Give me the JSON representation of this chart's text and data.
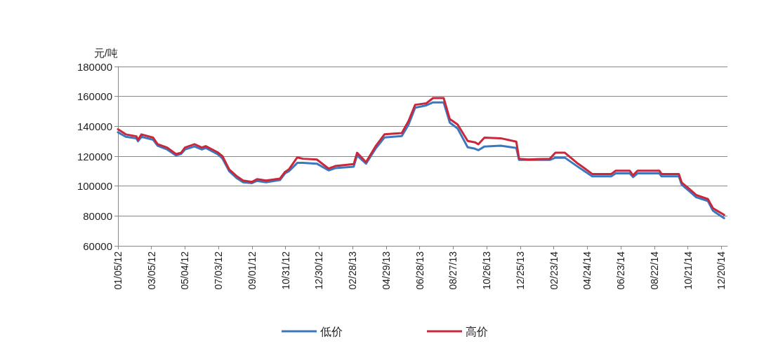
{
  "chart_data": {
    "type": "line",
    "ylabel": "元/吨",
    "x": [
      "2012-01-05",
      "2012-01-19",
      "2012-02-07",
      "2012-02-10",
      "2012-02-16",
      "2012-03-08",
      "2012-03-16",
      "2012-04-02",
      "2012-04-18",
      "2012-04-27",
      "2012-05-04",
      "2012-05-21",
      "2012-06-03",
      "2012-06-10",
      "2012-07-01",
      "2012-07-10",
      "2012-07-22",
      "2012-08-04",
      "2012-08-16",
      "2012-09-01",
      "2012-09-10",
      "2012-09-26",
      "2012-10-21",
      "2012-10-30",
      "2012-11-06",
      "2012-11-21",
      "2012-12-01",
      "2012-12-26",
      "2013-01-16",
      "2013-01-28",
      "2013-03-02",
      "2013-03-08",
      "2013-03-24",
      "2013-04-11",
      "2013-04-26",
      "2013-05-27",
      "2013-06-08",
      "2013-06-20",
      "2013-07-10",
      "2013-07-22",
      "2013-08-10",
      "2013-08-21",
      "2013-09-04",
      "2013-09-22",
      "2013-10-05",
      "2013-10-11",
      "2013-10-22",
      "2013-11-20",
      "2013-12-18",
      "2013-12-23",
      "2014-01-08",
      "2014-02-16",
      "2014-02-26",
      "2014-03-15",
      "2014-04-05",
      "2014-04-17",
      "2014-05-03",
      "2014-06-06",
      "2014-06-14",
      "2014-07-09",
      "2014-07-15",
      "2014-07-23",
      "2014-08-31",
      "2014-09-04",
      "2014-10-05",
      "2014-10-10",
      "2014-10-24",
      "2014-11-05",
      "2014-11-26",
      "2014-12-05",
      "2014-12-25"
    ],
    "series": [
      {
        "name": "低价",
        "color": "#3c78c0",
        "values": [
          136000,
          133000,
          132000,
          130000,
          133000,
          131000,
          127000,
          124500,
          120500,
          121500,
          124500,
          126500,
          124500,
          125500,
          121500,
          118500,
          110000,
          105500,
          102500,
          102000,
          103500,
          102500,
          104000,
          108500,
          110000,
          115500,
          115500,
          115000,
          110500,
          112000,
          113000,
          120500,
          115000,
          125500,
          132500,
          133500,
          141000,
          152500,
          154000,
          156000,
          156000,
          142500,
          138500,
          126000,
          125000,
          124000,
          126500,
          127000,
          125500,
          117500,
          117500,
          117500,
          119000,
          119000,
          113500,
          110500,
          106500,
          106500,
          108500,
          108500,
          106000,
          108500,
          108500,
          106500,
          106500,
          101000,
          96500,
          92500,
          90000,
          83500,
          78500
        ]
      },
      {
        "name": "高价",
        "color": "#c8283a",
        "values": [
          138000,
          134600,
          133300,
          131000,
          134600,
          132400,
          128000,
          125800,
          121400,
          122300,
          125800,
          128000,
          125800,
          126700,
          122700,
          120000,
          111200,
          106800,
          103700,
          102800,
          104600,
          103700,
          105000,
          109500,
          111200,
          119200,
          118300,
          117800,
          111700,
          113400,
          114700,
          122300,
          116000,
          127100,
          134600,
          135500,
          143400,
          154400,
          155400,
          158900,
          158900,
          144800,
          141200,
          130200,
          129300,
          128000,
          132400,
          132000,
          129700,
          118300,
          117800,
          118300,
          122300,
          122300,
          115700,
          112500,
          108100,
          108100,
          110300,
          110300,
          107200,
          110300,
          110300,
          108100,
          108100,
          102400,
          98000,
          94000,
          91300,
          85200,
          80700
        ]
      }
    ],
    "xlim": [
      "2012-01-05",
      "2014-12-31"
    ],
    "xticks": [
      {
        "value": "2012-01-05",
        "label": "01/05/12"
      },
      {
        "value": "2012-03-05",
        "label": "03/05/12"
      },
      {
        "value": "2012-05-04",
        "label": "05/04/12"
      },
      {
        "value": "2012-07-03",
        "label": "07/03/12"
      },
      {
        "value": "2012-09-01",
        "label": "09/01/12"
      },
      {
        "value": "2012-10-31",
        "label": "10/31/12"
      },
      {
        "value": "2012-12-30",
        "label": "12/30/12"
      },
      {
        "value": "2013-02-28",
        "label": "02/28/13"
      },
      {
        "value": "2013-04-29",
        "label": "04/29/13"
      },
      {
        "value": "2013-06-28",
        "label": "06/28/13"
      },
      {
        "value": "2013-08-27",
        "label": "08/27/13"
      },
      {
        "value": "2013-10-26",
        "label": "10/26/13"
      },
      {
        "value": "2013-12-25",
        "label": "12/25/13"
      },
      {
        "value": "2014-02-23",
        "label": "02/23/14"
      },
      {
        "value": "2014-04-24",
        "label": "04/24/14"
      },
      {
        "value": "2014-06-23",
        "label": "06/23/14"
      },
      {
        "value": "2014-08-22",
        "label": "08/22/14"
      },
      {
        "value": "2014-10-21",
        "label": "10/21/14"
      },
      {
        "value": "2014-12-20",
        "label": "12/20/14"
      }
    ],
    "ylim": [
      60000,
      180000
    ],
    "yticks": [
      60000,
      80000,
      100000,
      120000,
      140000,
      160000,
      180000
    ],
    "grid": "y",
    "legend": "bottom",
    "marker": "none",
    "line_style": "solid"
  }
}
